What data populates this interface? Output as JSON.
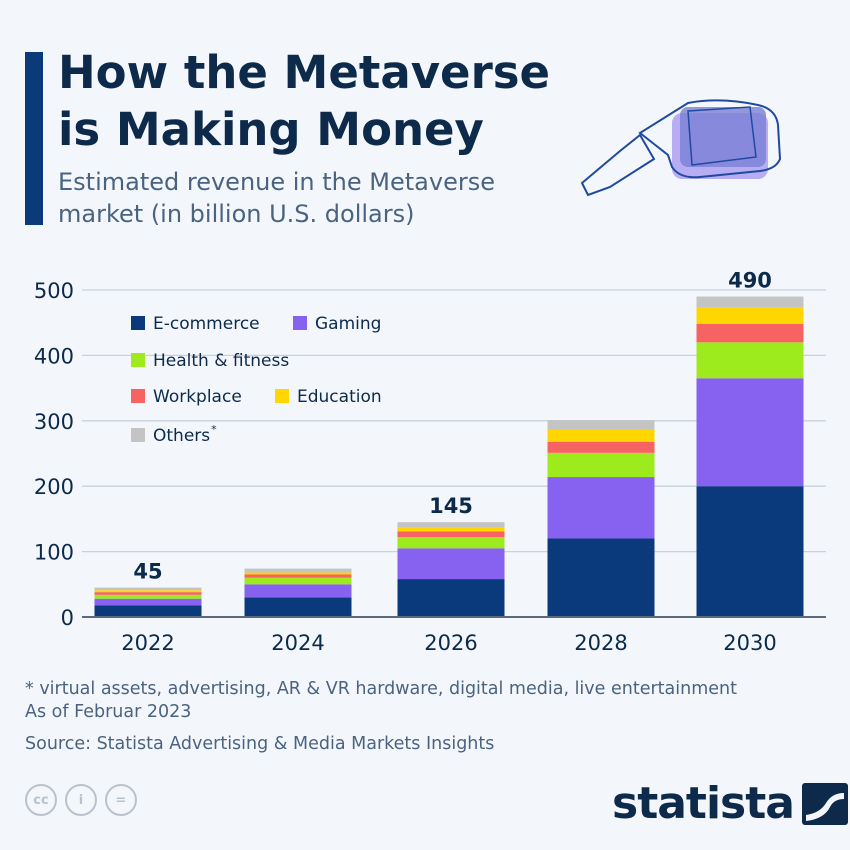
{
  "header": {
    "title": "How the Metaverse is Making Money",
    "subtitle": "Estimated revenue in the Metaverse market (in billion U.S. dollars)"
  },
  "chart_data": {
    "type": "bar",
    "stacked": true,
    "title": "How the Metaverse is Making Money",
    "subtitle": "Estimated revenue in the Metaverse market (in billion U.S. dollars)",
    "categories": [
      "2022",
      "2024",
      "2026",
      "2028",
      "2030"
    ],
    "ylim": [
      0,
      500
    ],
    "yticks": [
      0,
      100,
      200,
      300,
      400,
      500
    ],
    "grid": true,
    "legend_position": "top-left",
    "series": [
      {
        "name": "E-commerce",
        "color": "#0b3a7c",
        "values": [
          18,
          30,
          58,
          120,
          200
        ]
      },
      {
        "name": "Gaming",
        "color": "#8761ef",
        "values": [
          10,
          20,
          47,
          94,
          165
        ]
      },
      {
        "name": "Health & fitness",
        "color": "#9deb1c",
        "values": [
          6,
          10,
          17,
          37,
          55
        ]
      },
      {
        "name": "Workplace",
        "color": "#f76262",
        "values": [
          4,
          5,
          9,
          17,
          28
        ]
      },
      {
        "name": "Education",
        "color": "#ffd600",
        "values": [
          3,
          3,
          6,
          18,
          25
        ]
      },
      {
        "name": "Others",
        "color": "#c4c4c4",
        "values": [
          4,
          6,
          8,
          15,
          17
        ]
      }
    ],
    "total_labels": [
      "45",
      "",
      "145",
      "",
      "490"
    ]
  },
  "legend": {
    "others_marker": "*"
  },
  "footer": {
    "footnote": "* virtual assets, advertising, AR & VR hardware, digital media, live entertainment",
    "as_of": "As of Februar 2023",
    "source": "Source: Statista Advertising & Media Markets Insights",
    "logo": "statista",
    "license_icons": [
      "cc",
      "by",
      "nd"
    ]
  }
}
